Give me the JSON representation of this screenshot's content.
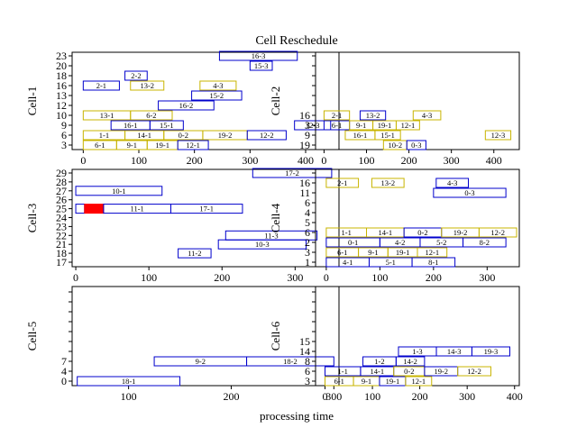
{
  "chart_data": {
    "type": "gantt",
    "title": "Cell Reschedule",
    "xlabel": "processing time",
    "colors": {
      "blue": "#0000cc",
      "yellow": "#c8b400",
      "red": "#ff0000"
    },
    "panels": [
      {
        "ylabel": "Cell-1",
        "xlim": [
          -20,
          460
        ],
        "ylim": [
          -0.5,
          11.5
        ],
        "xticks": [
          0,
          100,
          200,
          300,
          400
        ],
        "rows": [
          "3",
          "6",
          "9",
          "10",
          "12",
          "13",
          "16",
          "18",
          "20",
          "23"
        ],
        "bars": [
          {
            "label": "6-1",
            "row": "3",
            "start": 0,
            "end": 60,
            "color": "yellow"
          },
          {
            "label": "9-1",
            "row": "3",
            "start": 60,
            "end": 115,
            "color": "yellow"
          },
          {
            "label": "19-1",
            "row": "3",
            "start": 115,
            "end": 170,
            "color": "yellow"
          },
          {
            "label": "12-1",
            "row": "3",
            "start": 170,
            "end": 225,
            "color": "blue"
          },
          {
            "label": "1-1",
            "row": "6",
            "start": 0,
            "end": 75,
            "color": "yellow"
          },
          {
            "label": "14-1",
            "row": "6",
            "start": 75,
            "end": 145,
            "color": "yellow"
          },
          {
            "label": "0-2",
            "row": "6",
            "start": 145,
            "end": 215,
            "color": "yellow"
          },
          {
            "label": "19-2",
            "row": "6",
            "start": 215,
            "end": 295,
            "color": "yellow"
          },
          {
            "label": "12-2",
            "row": "6",
            "start": 295,
            "end": 365,
            "color": "blue"
          },
          {
            "label": "16-1",
            "row": "9",
            "start": 50,
            "end": 120,
            "color": "blue"
          },
          {
            "label": "15-1",
            "row": "9",
            "start": 120,
            "end": 180,
            "color": "blue"
          },
          {
            "label": "12-3",
            "row": "9",
            "start": 380,
            "end": 445,
            "color": "blue"
          },
          {
            "label": "13-1",
            "row": "10",
            "start": 0,
            "end": 85,
            "color": "yellow"
          },
          {
            "label": "6-2",
            "row": "10",
            "start": 85,
            "end": 160,
            "color": "yellow"
          },
          {
            "label": "16-2",
            "row": "12",
            "start": 135,
            "end": 235,
            "color": "blue"
          },
          {
            "label": "15-2",
            "row": "13",
            "start": 195,
            "end": 285,
            "color": "blue"
          },
          {
            "label": "2-1",
            "row": "16",
            "start": 0,
            "end": 65,
            "color": "blue"
          },
          {
            "label": "13-2",
            "row": "16",
            "start": 85,
            "end": 145,
            "color": "yellow"
          },
          {
            "label": "4-3",
            "row": "16",
            "start": 210,
            "end": 275,
            "color": "yellow"
          },
          {
            "label": "2-2",
            "row": "18",
            "start": 75,
            "end": 115,
            "color": "blue"
          },
          {
            "label": "15-3",
            "row": "20",
            "start": 300,
            "end": 340,
            "color": "blue"
          },
          {
            "label": "16-3",
            "row": "23",
            "start": 245,
            "end": 385,
            "color": "blue"
          }
        ]
      },
      {
        "ylabel": "Cell-2",
        "xlim": [
          -20,
          460
        ],
        "ylim": [
          -0.5,
          11.5
        ],
        "xticks": [
          0,
          100,
          200,
          300,
          400
        ],
        "rows": [
          "19",
          "9",
          "3",
          "16"
        ],
        "bars": [
          {
            "label": "10-2",
            "row": "19",
            "start": 140,
            "end": 195,
            "color": "yellow"
          },
          {
            "label": "0-3",
            "row": "19",
            "start": 195,
            "end": 240,
            "color": "blue"
          },
          {
            "label": "16-1",
            "row": "9",
            "start": 50,
            "end": 120,
            "color": "yellow"
          },
          {
            "label": "15-1",
            "row": "9",
            "start": 120,
            "end": 180,
            "color": "yellow"
          },
          {
            "label": "12-3",
            "row": "9",
            "start": 380,
            "end": 440,
            "color": "yellow"
          },
          {
            "label": "6-1",
            "row": "3",
            "start": 0,
            "end": 60,
            "color": "blue"
          },
          {
            "label": "9-1",
            "row": "3",
            "start": 60,
            "end": 115,
            "color": "yellow"
          },
          {
            "label": "19-1",
            "row": "3",
            "start": 115,
            "end": 170,
            "color": "yellow"
          },
          {
            "label": "12-1",
            "row": "3",
            "start": 170,
            "end": 225,
            "color": "yellow"
          },
          {
            "label": "2-1",
            "row": "16",
            "start": 0,
            "end": 60,
            "color": "yellow"
          },
          {
            "label": "13-2",
            "row": "16",
            "start": 85,
            "end": 145,
            "color": "blue"
          },
          {
            "label": "4-3",
            "row": "16",
            "start": 210,
            "end": 275,
            "color": "yellow"
          }
        ]
      },
      {
        "ylabel": "Cell-3",
        "xlim": [
          -5,
          360
        ],
        "ylim": [
          -0.5,
          11.5
        ],
        "xticks": [
          0,
          100,
          200,
          300
        ],
        "rows": [
          "17",
          "18",
          "21",
          "22",
          "23",
          "24",
          "25",
          "26",
          "27",
          "28",
          "29"
        ],
        "bars": [
          {
            "label": "11-2",
            "row": "18",
            "start": 140,
            "end": 185,
            "color": "blue"
          },
          {
            "label": "10-3",
            "row": "21",
            "start": 195,
            "end": 315,
            "color": "blue"
          },
          {
            "label": "11-3",
            "row": "22",
            "start": 205,
            "end": 330,
            "color": "blue"
          },
          {
            "label": "",
            "row": "25",
            "start": 0,
            "end": 12,
            "color": "blue"
          },
          {
            "label": "",
            "row": "25",
            "start": 12,
            "end": 38,
            "color": "red",
            "fill": true
          },
          {
            "label": "11-1",
            "row": "25",
            "start": 38,
            "end": 130,
            "color": "blue"
          },
          {
            "label": "17-1",
            "row": "25",
            "start": 130,
            "end": 228,
            "color": "blue"
          },
          {
            "label": "10-1",
            "row": "27",
            "start": 0,
            "end": 118,
            "color": "blue"
          },
          {
            "label": "17-2",
            "row": "29",
            "start": 242,
            "end": 350,
            "color": "blue"
          }
        ]
      },
      {
        "ylabel": "Cell-4",
        "xlim": [
          -20,
          360
        ],
        "ylim": [
          -0.5,
          11.5
        ],
        "xticks": [
          0,
          100,
          200,
          300
        ],
        "rows": [
          "1",
          "3",
          "2",
          "6",
          "5",
          "4",
          "6b",
          "11",
          "16"
        ],
        "row_labels": [
          "1",
          "3",
          "2",
          "6",
          "5",
          "4",
          "6",
          "11",
          "16"
        ],
        "bars": [
          {
            "label": "4-1",
            "row": "1",
            "start": 0,
            "end": 80,
            "color": "blue"
          },
          {
            "label": "5-1",
            "row": "1",
            "start": 80,
            "end": 160,
            "color": "blue"
          },
          {
            "label": "8-1",
            "row": "1",
            "start": 160,
            "end": 240,
            "color": "blue"
          },
          {
            "label": "6-1",
            "row": "3",
            "start": 0,
            "end": 60,
            "color": "yellow"
          },
          {
            "label": "9-1",
            "row": "3",
            "start": 60,
            "end": 115,
            "color": "yellow"
          },
          {
            "label": "19-1",
            "row": "3",
            "start": 115,
            "end": 170,
            "color": "yellow"
          },
          {
            "label": "12-1",
            "row": "3",
            "start": 170,
            "end": 225,
            "color": "yellow"
          },
          {
            "label": "0-1",
            "row": "2",
            "start": 0,
            "end": 100,
            "color": "blue"
          },
          {
            "label": "4-2",
            "row": "2",
            "start": 100,
            "end": 175,
            "color": "blue"
          },
          {
            "label": "5-2",
            "row": "2",
            "start": 175,
            "end": 255,
            "color": "blue"
          },
          {
            "label": "8-2",
            "row": "2",
            "start": 255,
            "end": 335,
            "color": "blue"
          },
          {
            "label": "1-1",
            "row": "6",
            "start": 0,
            "end": 75,
            "color": "yellow"
          },
          {
            "label": "14-1",
            "row": "6",
            "start": 75,
            "end": 145,
            "color": "yellow"
          },
          {
            "label": "0-2",
            "row": "6",
            "start": 145,
            "end": 215,
            "color": "blue"
          },
          {
            "label": "19-2",
            "row": "6",
            "start": 215,
            "end": 285,
            "color": "yellow"
          },
          {
            "label": "12-2",
            "row": "6",
            "start": 285,
            "end": 355,
            "color": "yellow"
          },
          {
            "label": "0-3",
            "row": "11",
            "start": 200,
            "end": 335,
            "color": "blue"
          },
          {
            "label": "2-1",
            "row": "16",
            "start": 0,
            "end": 60,
            "color": "yellow"
          },
          {
            "label": "13-2",
            "row": "16",
            "start": 85,
            "end": 145,
            "color": "yellow"
          },
          {
            "label": "4-3",
            "row": "16",
            "start": 205,
            "end": 265,
            "color": "blue"
          }
        ]
      },
      {
        "ylabel": "Cell-5",
        "xlim": [
          45,
          305
        ],
        "ylim": [
          -0.5,
          9.5
        ],
        "xticks": [
          100,
          200,
          300
        ],
        "rows": [
          "0",
          "4",
          "7"
        ],
        "bars": [
          {
            "label": "18-1",
            "row": "0",
            "start": 50,
            "end": 150,
            "color": "blue"
          },
          {
            "label": "9-2",
            "row": "7",
            "start": 125,
            "end": 215,
            "color": "blue"
          },
          {
            "label": "18-2",
            "row": "7",
            "start": 215,
            "end": 300,
            "color": "blue"
          }
        ]
      },
      {
        "ylabel": "Cell-6",
        "xlim": [
          -20,
          410
        ],
        "ylim": [
          -0.5,
          9.5
        ],
        "xticks": [
          0,
          100,
          200,
          300,
          400
        ],
        "rows": [
          "3",
          "6",
          "8",
          "14",
          "15"
        ],
        "bars": [
          {
            "label": "6-1",
            "row": "3",
            "start": 0,
            "end": 60,
            "color": "yellow"
          },
          {
            "label": "9-1",
            "row": "3",
            "start": 60,
            "end": 115,
            "color": "yellow"
          },
          {
            "label": "19-1",
            "row": "3",
            "start": 115,
            "end": 170,
            "color": "blue"
          },
          {
            "label": "12-1",
            "row": "3",
            "start": 170,
            "end": 225,
            "color": "yellow"
          },
          {
            "label": "1-1",
            "row": "6",
            "start": 0,
            "end": 75,
            "color": "blue"
          },
          {
            "label": "14-1",
            "row": "6",
            "start": 75,
            "end": 145,
            "color": "blue"
          },
          {
            "label": "0-2",
            "row": "6",
            "start": 145,
            "end": 210,
            "color": "yellow"
          },
          {
            "label": "19-2",
            "row": "6",
            "start": 210,
            "end": 280,
            "color": "blue"
          },
          {
            "label": "12-2",
            "row": "6",
            "start": 280,
            "end": 350,
            "color": "yellow"
          },
          {
            "label": "1-2",
            "row": "8",
            "start": 80,
            "end": 150,
            "color": "blue"
          },
          {
            "label": "14-2",
            "row": "8",
            "start": 150,
            "end": 210,
            "color": "blue"
          },
          {
            "label": "1-3",
            "row": "14",
            "start": 155,
            "end": 235,
            "color": "blue"
          },
          {
            "label": "14-3",
            "row": "14",
            "start": 235,
            "end": 310,
            "color": "blue"
          },
          {
            "label": "19-3",
            "row": "14",
            "start": 310,
            "end": 390,
            "color": "blue"
          }
        ]
      }
    ]
  }
}
